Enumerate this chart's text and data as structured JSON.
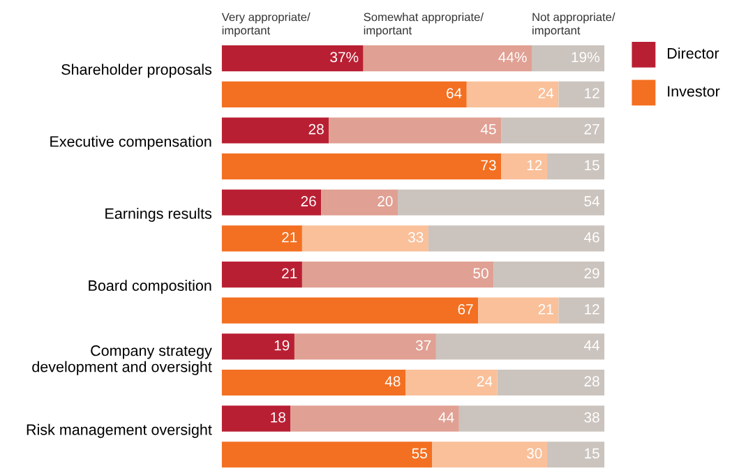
{
  "chart_data": {
    "type": "bar",
    "orientation": "horizontal",
    "stacked": true,
    "tick_labels": "y",
    "legend": "top left",
    "categories": [
      "Shareholder proposals",
      null,
      "Executive compensation",
      null,
      "Earnings results",
      null,
      "Board composition",
      null,
      "Company strategy\ndevelopment and oversight",
      null,
      "Risk management oversight",
      null
    ],
    "annotations": [
      "Director",
      "Investor"
    ],
    "series": [
      {
        "name": "Very appropriate/\nimportant",
        "colors": [
          "#b91f33",
          "#f36f21",
          "#b91f33",
          "#f36f21",
          "#b91f33",
          "#f36f21",
          "#b91f33",
          "#f36f21",
          "#b91f33",
          "#f36f21",
          "#b91f33",
          "#f36f21"
        ],
        "values": [
          37,
          64,
          28,
          73,
          26,
          21,
          21,
          67,
          19,
          48,
          18,
          55
        ],
        "value_labels": [
          "37%",
          "64",
          "28",
          "73",
          "26",
          "21",
          "21",
          "67",
          "19",
          "48",
          "18",
          "55"
        ]
      },
      {
        "name": "Somewhat appropriate/\nimportant",
        "colors": [
          "#e0a093",
          "#f9c09a",
          "#e0a093",
          "#f9c09a",
          "#e0a093",
          "#f9c09a",
          "#e0a093",
          "#f9c09a",
          "#e0a093",
          "#f9c09a",
          "#e0a093",
          "#f9c09a"
        ],
        "values": [
          44,
          24,
          45,
          12,
          20,
          33,
          50,
          21,
          37,
          24,
          44,
          30
        ],
        "value_labels": [
          "44%",
          "24",
          "45",
          "12",
          "20",
          "33",
          "50",
          "21",
          "37",
          "24",
          "44",
          "30"
        ]
      },
      {
        "name": "Not appropriate/\nimportant",
        "color": "#cbc3bd",
        "values": [
          19,
          12,
          27,
          15,
          54,
          46,
          29,
          12,
          44,
          28,
          38,
          15
        ],
        "value_labels": [
          "19%",
          "12",
          "27",
          "15",
          "54",
          "46",
          "29",
          "12",
          "44",
          "28",
          "38",
          "15"
        ]
      }
    ]
  }
}
